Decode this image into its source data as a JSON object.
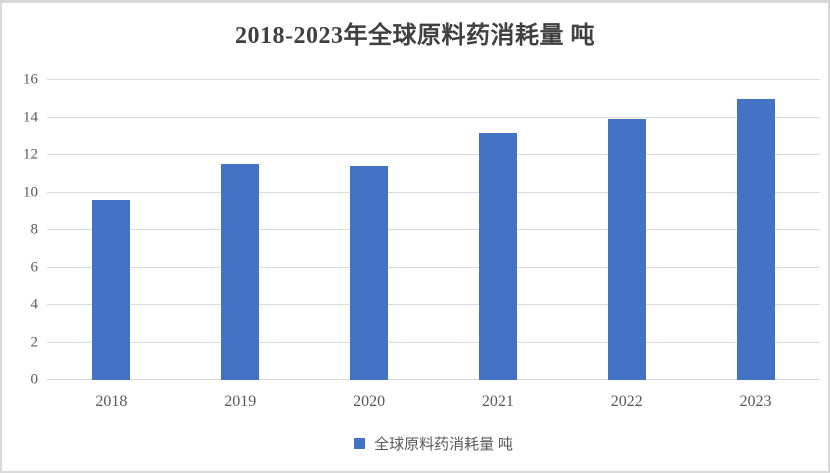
{
  "chart_data": {
    "type": "bar",
    "title": "2018-2023年全球原料药消耗量 吨",
    "categories": [
      "2018",
      "2019",
      "2020",
      "2021",
      "2022",
      "2023"
    ],
    "values": [
      9.6,
      11.5,
      11.4,
      13.2,
      13.9,
      15.0
    ],
    "series_name": "全球原料药消耗量 吨",
    "legend": {
      "label": "全球原料药消耗量 吨",
      "position": "bottom-center"
    },
    "xlabel": "",
    "ylabel": "",
    "ylim": [
      0,
      16
    ],
    "yticks": [
      0,
      2,
      4,
      6,
      8,
      10,
      12,
      14,
      16
    ],
    "grid": true,
    "colors": {
      "bar": "#4472C4",
      "gridline": "#DCDCDC",
      "axis_line": "#D9D9D9",
      "axis_text": "#595959",
      "title_text": "#404040",
      "frame_border": "#D9D9D9",
      "background": "#FFFFFF"
    }
  }
}
